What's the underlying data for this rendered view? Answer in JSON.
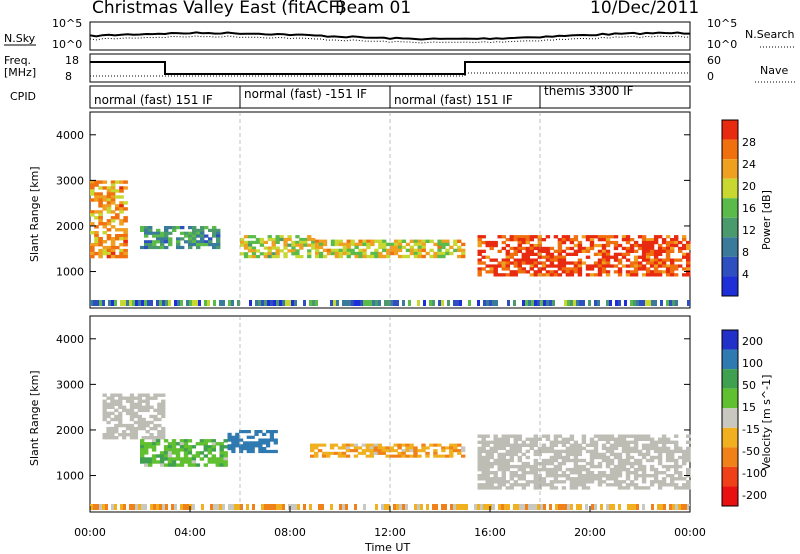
{
  "header": {
    "title": "Christmas Valley East (fitACF)",
    "beam": "Beam 01",
    "date": "10/Dec/2011"
  },
  "labels": {
    "nsky": "N.Sky",
    "freq": "Freq.",
    "freq_unit": "[MHz]",
    "cpid": "CPID",
    "nsearch": "N.Search",
    "nave": "Nave"
  },
  "noise_panel": {
    "left_ticks": [
      "10^5",
      "10^0"
    ],
    "right_ticks": [
      "10^5",
      "10^0"
    ]
  },
  "freq_panel": {
    "left_ticks": [
      "18",
      "8"
    ],
    "right_ticks": [
      "60",
      "0"
    ]
  },
  "cpid_modes": [
    {
      "label": "normal (fast) 151 IF",
      "start_hour": 0
    },
    {
      "label": "normal (fast) -151 IF",
      "start_hour": 6
    },
    {
      "label": "normal (fast) 151 IF",
      "start_hour": 12
    },
    {
      "label": "themis 3300 IF",
      "start_hour": 18
    }
  ],
  "colors": {
    "power": [
      "#1f2fd8",
      "#2d4fbf",
      "#3a7a9a",
      "#4b9a6e",
      "#5bbb4a",
      "#c8d830",
      "#f0a020",
      "#f07010",
      "#e82a10"
    ],
    "velocity": [
      "#2030c8",
      "#2f7ab0",
      "#3fa050",
      "#60c030",
      "#c8c8c0",
      "#f0b020",
      "#f08018",
      "#f04018",
      "#e81010"
    ],
    "ground": "#bdbdb5"
  },
  "chart_data": [
    {
      "type": "heatmap",
      "name": "power",
      "xlabel": "",
      "ylabel": "Slant Range [km]",
      "ylim": [
        200,
        4500
      ],
      "x_range_hours": [
        0,
        24
      ],
      "y_ticks": [
        1000,
        2000,
        3000,
        4000
      ],
      "colorbar": {
        "label": "Power [dB]",
        "ticks": [
          4,
          8,
          12,
          16,
          20,
          24,
          28
        ],
        "range": [
          0,
          30
        ]
      },
      "features": [
        {
          "desc": "main echo band",
          "x": [
            2.0,
            5.2
          ],
          "range_km": [
            1500,
            2000
          ],
          "value": 11
        },
        {
          "desc": "strong near-range",
          "x": [
            0.0,
            1.5
          ],
          "range_km": [
            1300,
            3000
          ],
          "value": 22
        },
        {
          "desc": "echo dip",
          "x": [
            6.0,
            9.0
          ],
          "range_km": [
            1300,
            1800
          ],
          "value": 18
        },
        {
          "desc": "echo band",
          "x": [
            9.0,
            15.0
          ],
          "range_km": [
            1300,
            1700
          ],
          "value": 19
        },
        {
          "desc": "strong evening band",
          "x": [
            15.5,
            24.0
          ],
          "range_km": [
            900,
            1800
          ],
          "value": 27
        }
      ]
    },
    {
      "type": "heatmap",
      "name": "velocity",
      "xlabel": "Time UT",
      "ylabel": "Slant Range [km]",
      "ylim": [
        200,
        4500
      ],
      "x_range_hours": [
        0,
        24
      ],
      "x_ticks": [
        "00:00",
        "04:00",
        "08:00",
        "12:00",
        "16:00",
        "20:00",
        "00:00"
      ],
      "y_ticks": [
        1000,
        2000,
        3000,
        4000
      ],
      "colorbar": {
        "label": "Velocity [m s^-1]",
        "ticks": [
          200,
          100,
          50,
          15,
          -15,
          -50,
          -100,
          -200
        ],
        "range": [
          -250,
          250
        ]
      },
      "features": [
        {
          "desc": "ground scatter",
          "x": [
            0.5,
            3.0
          ],
          "range_km": [
            1800,
            2800
          ],
          "value": 0
        },
        {
          "desc": "negative flow",
          "x": [
            2.0,
            5.5
          ],
          "range_km": [
            1200,
            1800
          ],
          "value": 40
        },
        {
          "desc": "toward radar",
          "x": [
            5.5,
            7.5
          ],
          "range_km": [
            1500,
            2000
          ],
          "value": 150
        },
        {
          "desc": "away band",
          "x": [
            8.8,
            15.0
          ],
          "range_km": [
            1400,
            1700
          ],
          "value": -40
        },
        {
          "desc": "ground scatter",
          "x": [
            15.5,
            24.0
          ],
          "range_km": [
            700,
            1900
          ],
          "value": 0
        }
      ]
    }
  ]
}
